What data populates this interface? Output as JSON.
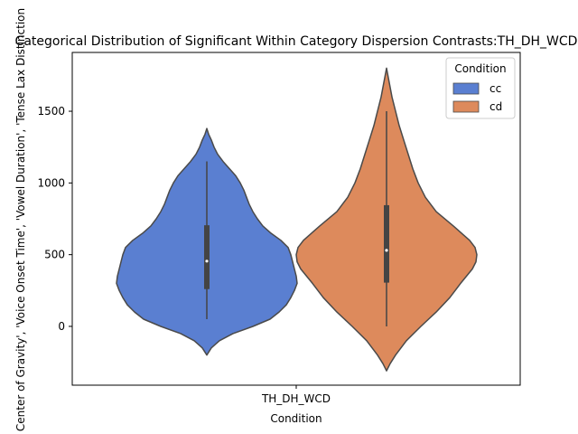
{
  "chart_data": {
    "type": "violin",
    "title": "Categorical Distribution of Significant Within Category Dispersion Contrasts:TH_DH_WCD",
    "xlabel": "Condition",
    "ylabel": "Center of Gravity', 'Voice Onset Time', 'Vowel Duration', 'Tense Lax Distinction",
    "categories": [
      "TH_DH_WCD"
    ],
    "ylim": [
      -410,
      1910
    ],
    "yticks": [
      0,
      500,
      1000,
      1500
    ],
    "legend": {
      "title": "Condition",
      "position": "top-right"
    },
    "grid": false,
    "series": [
      {
        "name": "cc",
        "color": "#5a7fd1",
        "min": -200,
        "max": 1380,
        "whisker_low": 50,
        "whisker_high": 1150,
        "q1": 260,
        "median": 455,
        "q3": 705,
        "density_profile": [
          [
            -200,
            0.0
          ],
          [
            -150,
            0.05
          ],
          [
            -100,
            0.14
          ],
          [
            -50,
            0.29
          ],
          [
            0,
            0.51
          ],
          [
            50,
            0.7
          ],
          [
            100,
            0.8
          ],
          [
            150,
            0.88
          ],
          [
            200,
            0.93
          ],
          [
            250,
            0.97
          ],
          [
            300,
            1.0
          ],
          [
            350,
            0.99
          ],
          [
            400,
            0.97
          ],
          [
            450,
            0.95
          ],
          [
            500,
            0.93
          ],
          [
            550,
            0.9
          ],
          [
            600,
            0.82
          ],
          [
            650,
            0.71
          ],
          [
            700,
            0.62
          ],
          [
            750,
            0.56
          ],
          [
            800,
            0.51
          ],
          [
            850,
            0.47
          ],
          [
            900,
            0.44
          ],
          [
            950,
            0.41
          ],
          [
            1000,
            0.37
          ],
          [
            1050,
            0.32
          ],
          [
            1100,
            0.25
          ],
          [
            1150,
            0.18
          ],
          [
            1200,
            0.12
          ],
          [
            1250,
            0.08
          ],
          [
            1300,
            0.05
          ],
          [
            1340,
            0.02
          ],
          [
            1380,
            0.0
          ]
        ]
      },
      {
        "name": "cd",
        "color": "#dd8a5c",
        "min": -310,
        "max": 1800,
        "whisker_low": 0,
        "whisker_high": 1500,
        "q1": 305,
        "median": 530,
        "q3": 845,
        "density_profile": [
          [
            -310,
            0.0
          ],
          [
            -260,
            0.04
          ],
          [
            -200,
            0.1
          ],
          [
            -100,
            0.22
          ],
          [
            0,
            0.38
          ],
          [
            100,
            0.55
          ],
          [
            200,
            0.7
          ],
          [
            300,
            0.82
          ],
          [
            400,
            0.95
          ],
          [
            450,
            0.99
          ],
          [
            500,
            1.0
          ],
          [
            550,
            0.98
          ],
          [
            600,
            0.92
          ],
          [
            700,
            0.74
          ],
          [
            800,
            0.55
          ],
          [
            900,
            0.43
          ],
          [
            1000,
            0.35
          ],
          [
            1100,
            0.29
          ],
          [
            1200,
            0.24
          ],
          [
            1300,
            0.19
          ],
          [
            1400,
            0.14
          ],
          [
            1500,
            0.1
          ],
          [
            1600,
            0.06
          ],
          [
            1700,
            0.03
          ],
          [
            1800,
            0.0
          ]
        ]
      }
    ]
  }
}
